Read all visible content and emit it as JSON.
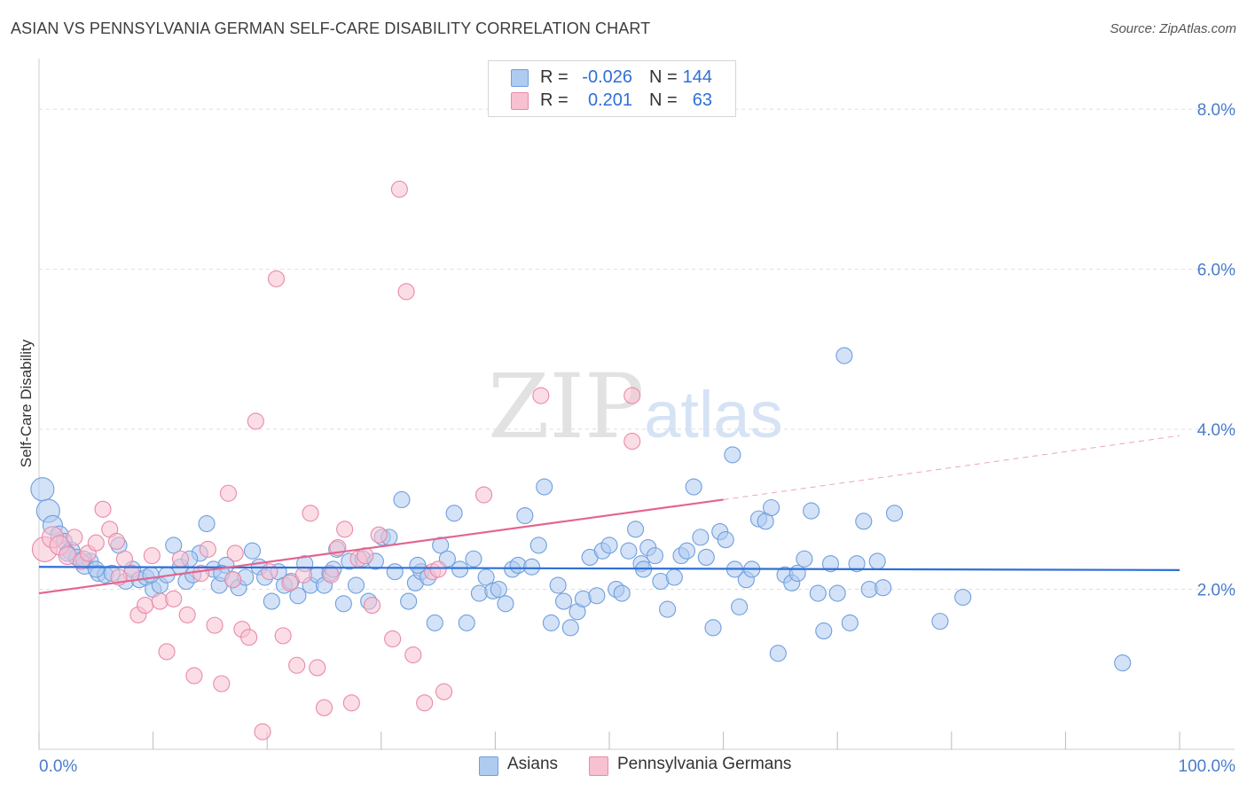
{
  "title": "ASIAN VS PENNSYLVANIA GERMAN SELF-CARE DISABILITY CORRELATION CHART",
  "source": "Source: ZipAtlas.com",
  "watermark": {
    "zip": "ZIP",
    "atlas": "atlas"
  },
  "legend": {
    "rows": [
      {
        "r_label": "R =",
        "r_value": "-0.026",
        "n_label": "N =",
        "n_value": "144",
        "color": "#aecbf0"
      },
      {
        "r_label": "R =",
        "r_value": "0.201",
        "n_label": "N =",
        "n_value": "63",
        "color": "#f7b6c9"
      }
    ]
  },
  "bottom_legend": [
    {
      "label": "Asians",
      "color": "#aecbf0"
    },
    {
      "label": "Pennsylvania Germans",
      "color": "#f7b6c9"
    }
  ],
  "colors": {
    "asian_fill": "#aecbf0",
    "asian_stroke": "#6f9fde",
    "asian_line": "#2f6fd6",
    "pg_fill": "#f7c1d1",
    "pg_stroke": "#e98aa8",
    "pg_line": "#e4648f",
    "grid": "#dedede",
    "axis_text": "#4a7cc9"
  },
  "chart_data": {
    "type": "scatter",
    "title": "ASIAN VS PENNSYLVANIA GERMAN SELF-CARE DISABILITY CORRELATION CHART",
    "xlabel": "",
    "ylabel": "Self-Care Disability",
    "xlim": [
      0,
      100
    ],
    "ylim": [
      0,
      8.5
    ],
    "x_tick_labels": [
      "0.0%",
      "100.0%"
    ],
    "y_ticks": [
      2.0,
      4.0,
      6.0,
      8.0
    ],
    "y_tick_labels": [
      "2.0%",
      "4.0%",
      "6.0%",
      "8.0%"
    ],
    "grid": true,
    "legend_position": "top-center",
    "series": [
      {
        "name": "Asians",
        "trend": {
          "x": [
            0,
            100
          ],
          "y": [
            2.28,
            2.24
          ],
          "dashed_from": null
        },
        "points": [
          [
            0.3,
            3.25,
            13
          ],
          [
            0.8,
            2.98,
            13
          ],
          [
            1.2,
            2.8,
            11
          ],
          [
            1.8,
            2.68,
            10
          ],
          [
            2.2,
            2.6,
            9
          ],
          [
            2.8,
            2.48,
            10
          ],
          [
            3.3,
            2.4,
            9
          ],
          [
            4.0,
            2.3,
            10
          ],
          [
            4.5,
            2.35,
            9
          ],
          [
            5.2,
            2.2,
            9
          ],
          [
            5.8,
            2.18,
            9
          ],
          [
            6.4,
            2.2,
            9
          ],
          [
            7.0,
            2.55,
            9
          ],
          [
            7.6,
            2.1,
            9
          ],
          [
            8.2,
            2.25,
            9
          ],
          [
            8.8,
            2.12,
            9
          ],
          [
            9.4,
            2.15,
            9
          ],
          [
            10.0,
            2.0,
            9
          ],
          [
            10.6,
            2.05,
            9
          ],
          [
            11.2,
            2.18,
            9
          ],
          [
            11.8,
            2.55,
            9
          ],
          [
            12.4,
            2.28,
            9
          ],
          [
            12.9,
            2.1,
            9
          ],
          [
            13.5,
            2.18,
            9
          ],
          [
            14.1,
            2.45,
            9
          ],
          [
            14.7,
            2.82,
            9
          ],
          [
            15.3,
            2.25,
            9
          ],
          [
            15.8,
            2.05,
            9
          ],
          [
            16.4,
            2.3,
            9
          ],
          [
            17.0,
            2.12,
            9
          ],
          [
            17.5,
            2.02,
            9
          ],
          [
            18.1,
            2.15,
            9
          ],
          [
            18.7,
            2.48,
            9
          ],
          [
            19.3,
            2.28,
            9
          ],
          [
            19.8,
            2.15,
            9
          ],
          [
            20.4,
            1.85,
            9
          ],
          [
            21.0,
            2.22,
            9
          ],
          [
            21.5,
            2.05,
            9
          ],
          [
            22.1,
            2.1,
            9
          ],
          [
            22.7,
            1.92,
            9
          ],
          [
            23.3,
            2.32,
            9
          ],
          [
            23.8,
            2.05,
            9
          ],
          [
            24.4,
            2.18,
            9
          ],
          [
            25.0,
            2.05,
            9
          ],
          [
            25.5,
            2.2,
            9
          ],
          [
            26.1,
            2.5,
            9
          ],
          [
            26.7,
            1.82,
            9
          ],
          [
            27.2,
            2.35,
            9
          ],
          [
            27.8,
            2.05,
            9
          ],
          [
            28.4,
            2.38,
            9
          ],
          [
            28.9,
            1.85,
            9
          ],
          [
            29.5,
            2.35,
            9
          ],
          [
            30.1,
            2.65,
            9
          ],
          [
            30.7,
            2.65,
            9
          ],
          [
            31.2,
            2.22,
            9
          ],
          [
            31.8,
            3.12,
            9
          ],
          [
            32.4,
            1.85,
            9
          ],
          [
            33.0,
            2.08,
            9
          ],
          [
            33.5,
            2.22,
            9
          ],
          [
            34.1,
            2.15,
            9
          ],
          [
            34.7,
            1.58,
            9
          ],
          [
            35.2,
            2.55,
            9
          ],
          [
            35.8,
            2.38,
            9
          ],
          [
            36.4,
            2.95,
            9
          ],
          [
            36.9,
            2.25,
            9
          ],
          [
            37.5,
            1.58,
            9
          ],
          [
            38.1,
            2.38,
            9
          ],
          [
            38.6,
            1.95,
            9
          ],
          [
            39.2,
            2.15,
            9
          ],
          [
            39.8,
            1.98,
            9
          ],
          [
            40.3,
            2.0,
            9
          ],
          [
            40.9,
            1.82,
            9
          ],
          [
            41.5,
            2.25,
            9
          ],
          [
            42.0,
            2.3,
            9
          ],
          [
            42.6,
            2.92,
            9
          ],
          [
            43.2,
            2.28,
            9
          ],
          [
            43.8,
            2.55,
            9
          ],
          [
            44.3,
            3.28,
            9
          ],
          [
            44.9,
            1.58,
            9
          ],
          [
            45.5,
            2.05,
            9
          ],
          [
            46.0,
            1.85,
            9
          ],
          [
            46.6,
            1.52,
            9
          ],
          [
            47.2,
            1.72,
            9
          ],
          [
            47.7,
            1.88,
            9
          ],
          [
            48.3,
            2.4,
            9
          ],
          [
            48.9,
            1.92,
            9
          ],
          [
            49.4,
            2.48,
            9
          ],
          [
            50.0,
            2.55,
            9
          ],
          [
            50.6,
            2.0,
            9
          ],
          [
            51.1,
            1.95,
            9
          ],
          [
            51.7,
            2.48,
            9
          ],
          [
            52.3,
            2.75,
            9
          ],
          [
            52.8,
            2.32,
            9
          ],
          [
            53.4,
            2.52,
            9
          ],
          [
            54.0,
            2.42,
            9
          ],
          [
            54.5,
            2.1,
            9
          ],
          [
            55.1,
            1.75,
            9
          ],
          [
            55.7,
            2.15,
            9
          ],
          [
            56.3,
            2.42,
            9
          ],
          [
            56.8,
            2.48,
            9
          ],
          [
            57.4,
            3.28,
            9
          ],
          [
            58.0,
            2.65,
            9
          ],
          [
            58.5,
            2.4,
            9
          ],
          [
            59.1,
            1.52,
            9
          ],
          [
            59.7,
            2.72,
            9
          ],
          [
            60.2,
            2.62,
            9
          ],
          [
            60.8,
            3.68,
            9
          ],
          [
            61.4,
            1.78,
            9
          ],
          [
            62.0,
            2.12,
            9
          ],
          [
            62.5,
            2.25,
            9
          ],
          [
            63.1,
            2.88,
            9
          ],
          [
            63.7,
            2.85,
            9
          ],
          [
            64.2,
            3.02,
            9
          ],
          [
            64.8,
            1.2,
            9
          ],
          [
            65.4,
            2.18,
            9
          ],
          [
            66.0,
            2.08,
            9
          ],
          [
            66.5,
            2.2,
            9
          ],
          [
            67.1,
            2.38,
            9
          ],
          [
            67.7,
            2.98,
            9
          ],
          [
            68.3,
            1.95,
            9
          ],
          [
            68.8,
            1.48,
            9
          ],
          [
            69.4,
            2.32,
            9
          ],
          [
            70.0,
            1.95,
            9
          ],
          [
            70.6,
            4.92,
            9
          ],
          [
            71.1,
            1.58,
            9
          ],
          [
            71.7,
            2.32,
            9
          ],
          [
            72.3,
            2.85,
            9
          ],
          [
            72.8,
            2.0,
            9
          ],
          [
            73.5,
            2.35,
            9
          ],
          [
            74.0,
            2.02,
            9
          ],
          [
            75.0,
            2.95,
            9
          ],
          [
            79.0,
            1.6,
            9
          ],
          [
            81.0,
            1.9,
            9
          ],
          [
            95.0,
            1.08,
            9
          ],
          [
            2.5,
            2.45,
            9
          ],
          [
            3.9,
            2.38,
            9
          ],
          [
            5.0,
            2.25,
            9
          ],
          [
            9.8,
            2.18,
            9
          ],
          [
            13.2,
            2.38,
            9
          ],
          [
            16.0,
            2.2,
            9
          ],
          [
            25.8,
            2.25,
            9
          ],
          [
            33.2,
            2.3,
            9
          ],
          [
            53.0,
            2.25,
            9
          ],
          [
            61.0,
            2.25,
            9
          ]
        ]
      },
      {
        "name": "Pennsylvania Germans",
        "trend": {
          "x": [
            0,
            60,
            100
          ],
          "y": [
            1.95,
            3.12,
            3.92
          ],
          "dashed_from": 60
        },
        "points": [
          [
            0.5,
            2.5,
            14
          ],
          [
            1.2,
            2.65,
            12
          ],
          [
            1.8,
            2.55,
            11
          ],
          [
            2.5,
            2.42,
            10
          ],
          [
            3.1,
            2.65,
            9
          ],
          [
            3.7,
            2.35,
            9
          ],
          [
            4.3,
            2.45,
            9
          ],
          [
            5.0,
            2.58,
            9
          ],
          [
            5.6,
            3.0,
            9
          ],
          [
            6.2,
            2.75,
            9
          ],
          [
            6.8,
            2.6,
            9
          ],
          [
            7.5,
            2.38,
            9
          ],
          [
            8.1,
            2.2,
            9
          ],
          [
            8.7,
            1.68,
            9
          ],
          [
            9.3,
            1.8,
            9
          ],
          [
            9.9,
            2.42,
            9
          ],
          [
            10.6,
            1.85,
            9
          ],
          [
            11.2,
            1.22,
            9
          ],
          [
            11.8,
            1.88,
            9
          ],
          [
            12.4,
            2.38,
            9
          ],
          [
            13.0,
            1.68,
            9
          ],
          [
            13.6,
            0.92,
            9
          ],
          [
            14.2,
            2.2,
            9
          ],
          [
            14.8,
            2.5,
            9
          ],
          [
            15.4,
            1.55,
            9
          ],
          [
            16.0,
            0.82,
            9
          ],
          [
            16.6,
            3.2,
            9
          ],
          [
            17.2,
            2.45,
            9
          ],
          [
            17.8,
            1.5,
            9
          ],
          [
            18.4,
            1.4,
            9
          ],
          [
            19.0,
            4.1,
            9
          ],
          [
            19.6,
            0.22,
            9
          ],
          [
            20.2,
            2.22,
            9
          ],
          [
            20.8,
            5.88,
            9
          ],
          [
            21.4,
            1.42,
            9
          ],
          [
            22.0,
            2.08,
            9
          ],
          [
            22.6,
            1.05,
            9
          ],
          [
            23.2,
            2.18,
            9
          ],
          [
            23.8,
            2.95,
            9
          ],
          [
            24.4,
            1.02,
            9
          ],
          [
            25.0,
            0.52,
            9
          ],
          [
            25.6,
            2.18,
            9
          ],
          [
            26.2,
            2.52,
            9
          ],
          [
            26.8,
            2.75,
            9
          ],
          [
            27.4,
            0.58,
            9
          ],
          [
            28.0,
            2.38,
            9
          ],
          [
            28.6,
            2.42,
            9
          ],
          [
            29.2,
            1.8,
            9
          ],
          [
            29.8,
            2.68,
            9
          ],
          [
            31.0,
            1.38,
            9
          ],
          [
            31.6,
            7.0,
            9
          ],
          [
            32.2,
            5.72,
            9
          ],
          [
            32.8,
            1.18,
            9
          ],
          [
            33.8,
            0.58,
            9
          ],
          [
            34.5,
            2.22,
            9
          ],
          [
            35.5,
            0.72,
            9
          ],
          [
            39.0,
            3.18,
            9
          ],
          [
            44.0,
            4.42,
            9
          ],
          [
            52.0,
            4.42,
            9
          ],
          [
            52.0,
            3.85,
            9
          ],
          [
            17.0,
            2.12,
            9
          ],
          [
            7.0,
            2.15,
            9
          ],
          [
            35.0,
            2.25,
            9
          ]
        ]
      }
    ]
  }
}
